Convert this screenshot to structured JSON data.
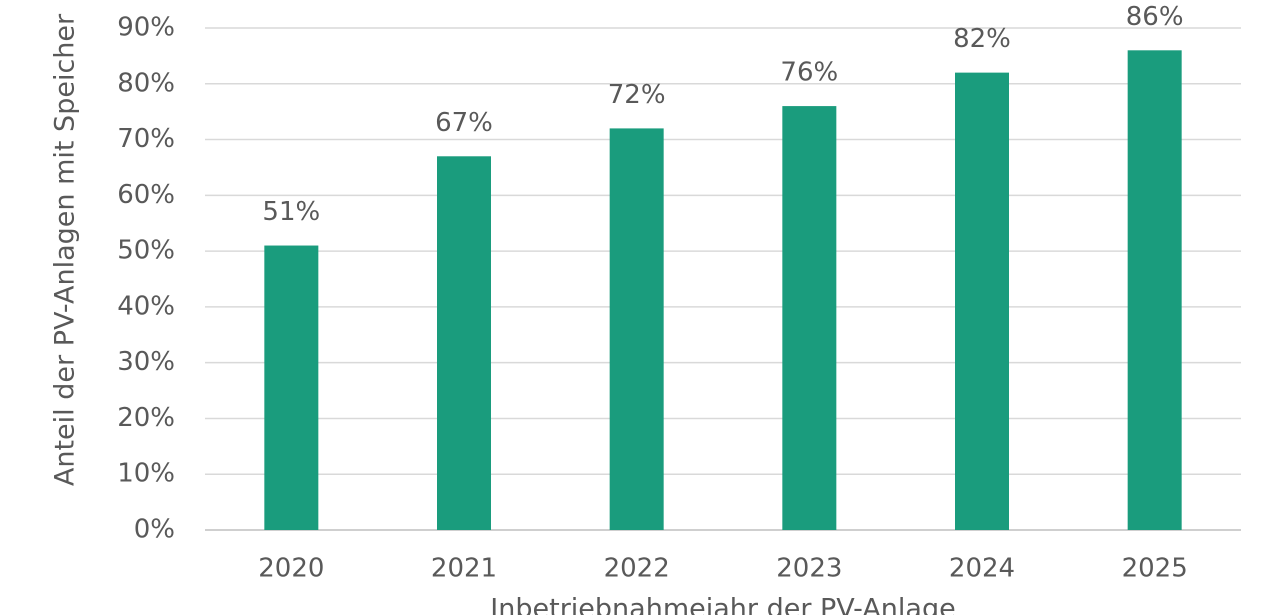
{
  "chart_data": {
    "type": "bar",
    "y_axis_label": "Anteil der PV-Anlagen mit Speicher",
    "x_axis_label": "Inbetriebnahmejahr der PV-Anlage",
    "categories": [
      "2020",
      "2021",
      "2022",
      "2023",
      "2024",
      "2025"
    ],
    "values": [
      51,
      67,
      72,
      76,
      82,
      86
    ],
    "value_labels": [
      "51%",
      "67%",
      "72%",
      "76%",
      "82%",
      "86%"
    ],
    "color": "#1a9c7d",
    "ylim": [
      0,
      90
    ],
    "yticks": [
      {
        "value": 0,
        "label": "0%"
      },
      {
        "value": 10,
        "label": "10%"
      },
      {
        "value": 20,
        "label": "20%"
      },
      {
        "value": 30,
        "label": "30%"
      },
      {
        "value": 40,
        "label": "40%"
      },
      {
        "value": 50,
        "label": "50%"
      },
      {
        "value": 60,
        "label": "60%"
      },
      {
        "value": 70,
        "label": "70%"
      },
      {
        "value": 80,
        "label": "80%"
      },
      {
        "value": 90,
        "label": "90%"
      }
    ],
    "grid": true
  }
}
